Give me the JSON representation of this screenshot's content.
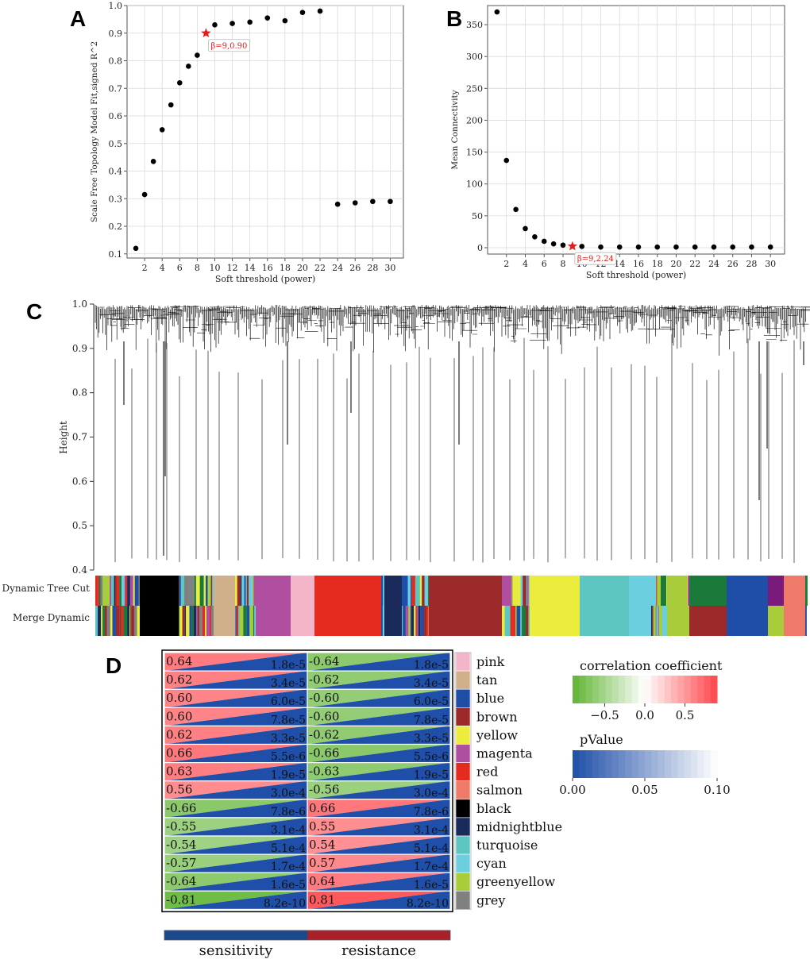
{
  "panels": {
    "a_letter": "A",
    "b_letter": "B",
    "c_letter": "C",
    "d_letter": "D"
  },
  "chart_data": [
    {
      "id": "A",
      "type": "scatter",
      "title": "",
      "xlabel": "Soft threshold (power)",
      "ylabel": "Scale Free Topology Model Fit,signed R^2",
      "x": [
        1,
        2,
        3,
        4,
        5,
        6,
        7,
        8,
        9,
        10,
        12,
        14,
        16,
        18,
        20,
        22,
        24,
        26,
        28,
        30
      ],
      "y": [
        0.12,
        0.315,
        0.435,
        0.55,
        0.64,
        0.72,
        0.78,
        0.82,
        0.9,
        0.93,
        0.935,
        0.94,
        0.955,
        0.945,
        0.975,
        0.98,
        0.28,
        0.285,
        0.29,
        0.29
      ],
      "xlim": [
        0,
        31.5
      ],
      "ylim": [
        0.085,
        1.0
      ],
      "xticks": [
        2,
        4,
        6,
        8,
        10,
        12,
        14,
        16,
        18,
        20,
        22,
        24,
        26,
        28,
        30
      ],
      "yticks": [
        0.1,
        0.2,
        0.3,
        0.4,
        0.5,
        0.6,
        0.7,
        0.8,
        0.9,
        1.0
      ],
      "xtick_labels": [
        "2",
        "4",
        "6",
        "8",
        "10",
        "12",
        "14",
        "16",
        "18",
        "20",
        "22",
        "24",
        "26",
        "28",
        "30"
      ],
      "ytick_labels": [
        "0.1",
        "0.2",
        "0.3",
        "0.4",
        "0.5",
        "0.6",
        "0.7",
        "0.8",
        "0.9",
        "1.0"
      ],
      "highlight": {
        "x": 9,
        "y": 0.9,
        "label": "β=9,0.90",
        "color": "#e02020"
      },
      "grid": true
    },
    {
      "id": "B",
      "type": "scatter",
      "title": "",
      "xlabel": "Soft threshold (power)",
      "ylabel": "Mean Connectivity",
      "x": [
        1,
        2,
        3,
        4,
        5,
        6,
        7,
        8,
        9,
        10,
        12,
        14,
        16,
        18,
        20,
        22,
        24,
        26,
        28,
        30
      ],
      "y": [
        370,
        137,
        60,
        30,
        17,
        10,
        6,
        4,
        2.24,
        2,
        1,
        1,
        1,
        1,
        1,
        1,
        1,
        1,
        1,
        1
      ],
      "xlim": [
        0,
        31.5
      ],
      "ylim": [
        -10,
        380
      ],
      "xticks": [
        2,
        4,
        6,
        8,
        10,
        12,
        14,
        16,
        18,
        20,
        22,
        24,
        26,
        28,
        30
      ],
      "yticks": [
        0,
        50,
        100,
        150,
        200,
        250,
        300,
        350
      ],
      "xtick_labels": [
        "2",
        "4",
        "6",
        "8",
        "10",
        "12",
        "14",
        "16",
        "18",
        "20",
        "22",
        "24",
        "26",
        "28",
        "30"
      ],
      "ytick_labels": [
        "0",
        "50",
        "100",
        "150",
        "200",
        "250",
        "300",
        "350"
      ],
      "highlight": {
        "x": 9,
        "y": 2.24,
        "label": "β=9,2.24",
        "color": "#e02020"
      },
      "grid": true
    },
    {
      "id": "C",
      "type": "dendrogram",
      "ylabel": "Height",
      "ylim": [
        0.4,
        1.0
      ],
      "yticks": [
        0.4,
        0.5,
        0.6,
        0.7,
        0.8,
        0.9,
        1.0
      ],
      "ytick_labels": [
        "0.4",
        "0.5",
        "0.6",
        "0.7",
        "0.8",
        "0.9",
        "1.0"
      ],
      "row_labels": [
        "Dynamic Tree Cut",
        "Merge Dynamic"
      ]
    },
    {
      "id": "D",
      "type": "heatmap",
      "columns": [
        "sensitivity",
        "resistance"
      ],
      "column_colors": [
        "#1a4a8c",
        "#a8202a"
      ],
      "modules": [
        {
          "name": "pink",
          "color": "#f5b5c8",
          "sens_r": "0.64",
          "sens_p": "1.8e-5",
          "res_r": "-0.64",
          "res_p": "1.8e-5",
          "sens_v": 0.64,
          "res_v": -0.64
        },
        {
          "name": "tan",
          "color": "#d0b08a",
          "sens_r": "0.62",
          "sens_p": "3.4e-5",
          "res_r": "-0.62",
          "res_p": "3.4e-5",
          "sens_v": 0.62,
          "res_v": -0.62
        },
        {
          "name": "blue",
          "color": "#1f4ea8",
          "sens_r": "0.60",
          "sens_p": "6.0e-5",
          "res_r": "-0.60",
          "res_p": "6.0e-5",
          "sens_v": 0.6,
          "res_v": -0.6
        },
        {
          "name": "brown",
          "color": "#9c2a2a",
          "sens_r": "0.60",
          "sens_p": "7.8e-5",
          "res_r": "-0.60",
          "res_p": "7.8e-5",
          "sens_v": 0.6,
          "res_v": -0.6
        },
        {
          "name": "yellow",
          "color": "#ecec3c",
          "sens_r": "0.62",
          "sens_p": "3.3e-5",
          "res_r": "-0.62",
          "res_p": "3.3e-5",
          "sens_v": 0.62,
          "res_v": -0.62
        },
        {
          "name": "magenta",
          "color": "#b04ea0",
          "sens_r": "0.66",
          "sens_p": "5.5e-6",
          "res_r": "-0.66",
          "res_p": "5.5e-6",
          "sens_v": 0.66,
          "res_v": -0.66
        },
        {
          "name": "red",
          "color": "#e52a20",
          "sens_r": "0.63",
          "sens_p": "1.9e-5",
          "res_r": "-0.63",
          "res_p": "1.9e-5",
          "sens_v": 0.63,
          "res_v": -0.63
        },
        {
          "name": "salmon",
          "color": "#f07a6a",
          "sens_r": "0.56",
          "sens_p": "3.0e-4",
          "res_r": "-0.56",
          "res_p": "3.0e-4",
          "sens_v": 0.56,
          "res_v": -0.56
        },
        {
          "name": "black",
          "color": "#000000",
          "sens_r": "-0.66",
          "sens_p": "7.8e-6",
          "res_r": "0.66",
          "res_p": "7.8e-6",
          "sens_v": -0.66,
          "res_v": 0.66
        },
        {
          "name": "midnightblue",
          "color": "#1a2a5a",
          "sens_r": "-0.55",
          "sens_p": "3.1e-4",
          "res_r": "0.55",
          "res_p": "3.1e-4",
          "sens_v": -0.55,
          "res_v": 0.55
        },
        {
          "name": "turquoise",
          "color": "#5ec6c0",
          "sens_r": "-0.54",
          "sens_p": "5.1e-4",
          "res_r": "0.54",
          "res_p": "5.1e-4",
          "sens_v": -0.54,
          "res_v": 0.54
        },
        {
          "name": "cyan",
          "color": "#6ccfe0",
          "sens_r": "-0.57",
          "sens_p": "1.7e-4",
          "res_r": "0.57",
          "res_p": "1.7e-4",
          "sens_v": -0.57,
          "res_v": 0.57
        },
        {
          "name": "greenyellow",
          "color": "#a8cc3a",
          "sens_r": "-0.64",
          "sens_p": "1.6e-5",
          "res_r": "0.64",
          "res_p": "1.6e-5",
          "sens_v": -0.64,
          "res_v": 0.64
        },
        {
          "name": "grey",
          "color": "#808080",
          "sens_r": "-0.81",
          "sens_p": "8.2e-10",
          "res_r": "0.81",
          "res_p": "8.2e-10",
          "sens_v": -0.81,
          "res_v": 0.81
        }
      ],
      "legend_corr": {
        "title": "correlation coefficient",
        "ticks": [
          "−0.5",
          "0.0",
          "0.5"
        ],
        "range": [
          -0.9,
          0.9
        ]
      },
      "legend_p": {
        "title": "pValue",
        "ticks": [
          "0.00",
          "0.05",
          "0.10"
        ],
        "range": [
          0,
          0.1
        ]
      }
    }
  ]
}
